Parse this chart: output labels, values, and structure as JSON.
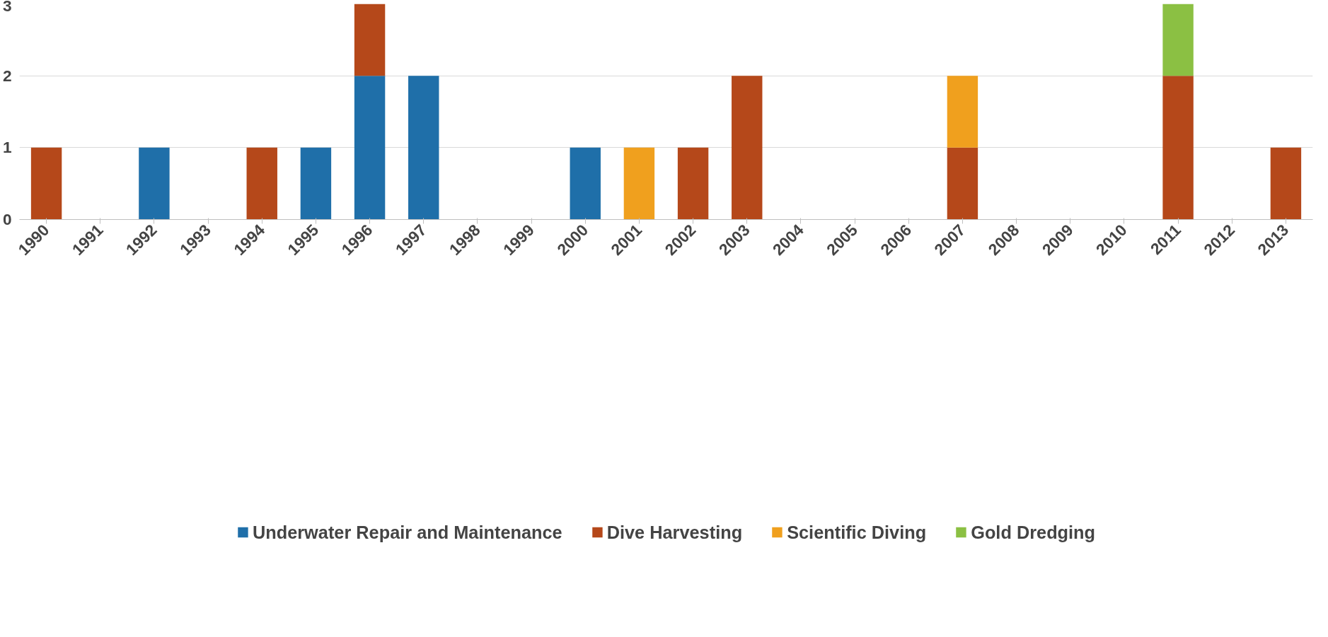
{
  "chart_data": {
    "type": "bar",
    "stacked": true,
    "categories": [
      "1990",
      "1991",
      "1992",
      "1993",
      "1994",
      "1995",
      "1996",
      "1997",
      "1998",
      "1999",
      "2000",
      "2001",
      "2002",
      "2003",
      "2004",
      "2005",
      "2006",
      "2007",
      "2008",
      "2009",
      "2010",
      "2011",
      "2012",
      "2013"
    ],
    "series": [
      {
        "name": "Underwater Repair and Maintenance",
        "color": "#1f6fa9",
        "values": [
          0,
          0,
          1,
          0,
          0,
          1,
          2,
          2,
          0,
          0,
          1,
          0,
          0,
          0,
          0,
          0,
          0,
          0,
          0,
          0,
          0,
          0,
          0,
          0
        ]
      },
      {
        "name": "Dive Harvesting",
        "color": "#b5481a",
        "values": [
          1,
          0,
          0,
          0,
          1,
          0,
          1,
          0,
          0,
          0,
          0,
          0,
          1,
          2,
          0,
          0,
          0,
          1,
          0,
          0,
          0,
          2,
          0,
          1
        ]
      },
      {
        "name": "Scientific Diving",
        "color": "#f0a01e",
        "values": [
          0,
          0,
          0,
          0,
          0,
          0,
          0,
          0,
          0,
          0,
          0,
          1,
          0,
          0,
          0,
          0,
          0,
          1,
          0,
          0,
          0,
          0,
          0,
          0
        ]
      },
      {
        "name": "Gold Dredging",
        "color": "#8bc043",
        "values": [
          0,
          0,
          0,
          0,
          0,
          0,
          0,
          0,
          0,
          0,
          0,
          0,
          0,
          0,
          0,
          0,
          0,
          0,
          0,
          0,
          0,
          1,
          0,
          0
        ]
      }
    ],
    "ylim": [
      0,
      3
    ],
    "yticks": [
      0,
      1,
      2,
      3
    ],
    "grid": "y",
    "legend": "bottom"
  }
}
